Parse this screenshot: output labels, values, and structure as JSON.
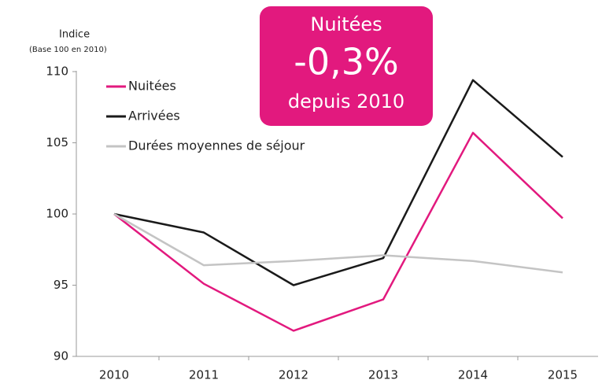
{
  "chart_data": {
    "type": "line",
    "y_axis_label": "Indice",
    "y_axis_sublabel": "(Base 100 en 2010)",
    "annotation": {
      "title": "Nuitées",
      "value": "-0,3%",
      "subtitle": "depuis 2010",
      "color": "#e2197e"
    },
    "categories": [
      "2010",
      "2011",
      "2012",
      "2013",
      "2014",
      "2015"
    ],
    "series": [
      {
        "name": "Nuitées",
        "color": "#e2197e",
        "values": [
          100,
          95.1,
          91.8,
          94.0,
          105.7,
          99.7
        ]
      },
      {
        "name": "Arrivées",
        "color": "#1a1a1a",
        "values": [
          100,
          98.7,
          95.0,
          96.9,
          109.4,
          104.0
        ]
      },
      {
        "name": "Durées moyennes de séjour",
        "color": "#c4c4c4",
        "values": [
          100,
          96.4,
          96.7,
          97.1,
          96.7,
          95.9
        ]
      }
    ],
    "ylim": [
      90,
      110
    ],
    "yticks": [
      90,
      95,
      100,
      105,
      110
    ],
    "grid": false,
    "legend": "upper left"
  }
}
